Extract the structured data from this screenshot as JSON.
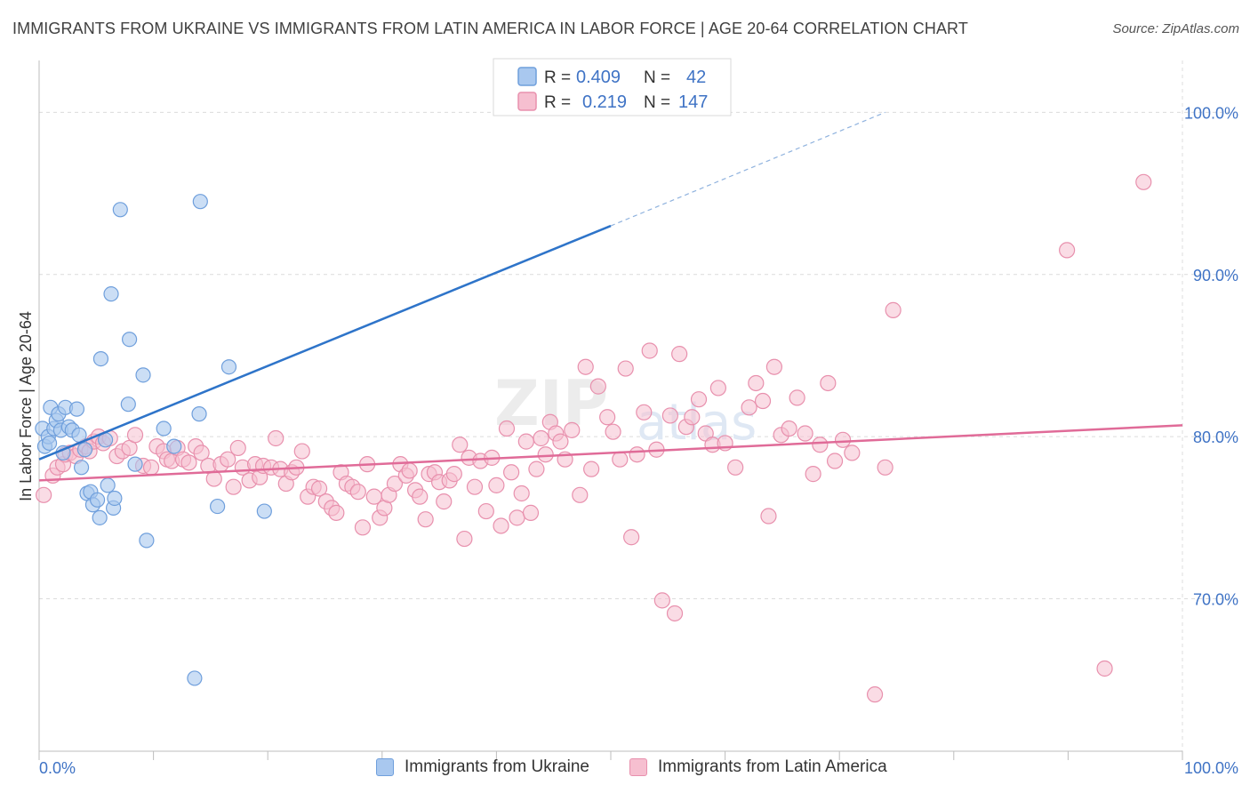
{
  "title": "IMMIGRANTS FROM UKRAINE VS IMMIGRANTS FROM LATIN AMERICA IN LABOR FORCE | AGE 20-64 CORRELATION CHART",
  "source": "Source: ZipAtlas.com",
  "colors": {
    "blue_fill": "#a9c8ef",
    "blue_stroke": "#6f9fdc",
    "blue_line": "#2e74c9",
    "pink_fill": "#f6bfd0",
    "pink_stroke": "#e890ad",
    "pink_line": "#e06b98",
    "axis_label": "#3f73c5",
    "grid": "#dcdcdc"
  },
  "chart_data": {
    "type": "scatter",
    "title": "IMMIGRANTS FROM UKRAINE VS IMMIGRANTS FROM LATIN AMERICA IN LABOR FORCE | AGE 20-64 CORRELATION CHART",
    "xlabel": "",
    "ylabel": "In Labor Force | Age 20-64",
    "xlim": [
      0,
      100
    ],
    "ylim": [
      60.6,
      103.2
    ],
    "x_tick_labels": [
      "0.0%",
      "100.0%"
    ],
    "y_ticks": [
      70,
      80,
      90,
      100
    ],
    "y_tick_labels": [
      "70.0%",
      "80.0%",
      "90.0%",
      "100.0%"
    ],
    "grid": true,
    "legend_stats": [
      {
        "r_label": "R =",
        "r_value": "0.409",
        "n_label": "N =",
        "n_value": "42"
      },
      {
        "r_label": "R =",
        "r_value": "0.219",
        "n_label": "N =",
        "n_value": "147"
      }
    ],
    "series": [
      {
        "name": "Immigrants from Ukraine",
        "color": "blue",
        "trend": {
          "x0": 0,
          "y0": 78.6,
          "x1": 50,
          "y1": 93.0,
          "dashed_to_x": 74,
          "dashed_to_y": 100.0
        },
        "points": [
          [
            0.3,
            80.5
          ],
          [
            0.5,
            79.4
          ],
          [
            0.8,
            80.0
          ],
          [
            0.9,
            79.6
          ],
          [
            1.0,
            81.8
          ],
          [
            1.3,
            80.5
          ],
          [
            1.5,
            81.0
          ],
          [
            1.7,
            81.4
          ],
          [
            1.9,
            80.4
          ],
          [
            2.1,
            79.0
          ],
          [
            2.3,
            81.8
          ],
          [
            2.6,
            80.6
          ],
          [
            2.9,
            80.4
          ],
          [
            3.3,
            81.7
          ],
          [
            3.5,
            80.1
          ],
          [
            3.7,
            78.1
          ],
          [
            4.0,
            79.2
          ],
          [
            4.2,
            76.5
          ],
          [
            4.5,
            76.6
          ],
          [
            4.7,
            75.8
          ],
          [
            5.1,
            76.1
          ],
          [
            5.3,
            75.0
          ],
          [
            5.4,
            84.8
          ],
          [
            5.8,
            79.8
          ],
          [
            6.0,
            77.0
          ],
          [
            6.3,
            88.8
          ],
          [
            6.5,
            75.6
          ],
          [
            6.6,
            76.2
          ],
          [
            7.1,
            94.0
          ],
          [
            7.8,
            82.0
          ],
          [
            7.9,
            86.0
          ],
          [
            8.4,
            78.3
          ],
          [
            9.1,
            83.8
          ],
          [
            9.4,
            73.6
          ],
          [
            10.9,
            80.5
          ],
          [
            11.8,
            79.4
          ],
          [
            13.6,
            65.1
          ],
          [
            14.0,
            81.4
          ],
          [
            14.1,
            94.5
          ],
          [
            15.6,
            75.7
          ],
          [
            16.6,
            84.3
          ],
          [
            19.7,
            75.4
          ]
        ]
      },
      {
        "name": "Immigrants from Latin America",
        "color": "pink",
        "trend": {
          "x0": 0,
          "y0": 77.3,
          "x1": 100,
          "y1": 80.7
        },
        "points": [
          [
            0.4,
            76.4
          ],
          [
            1.2,
            77.6
          ],
          [
            1.6,
            78.1
          ],
          [
            2.1,
            78.3
          ],
          [
            2.3,
            78.9
          ],
          [
            2.7,
            79.0
          ],
          [
            3.2,
            78.8
          ],
          [
            3.6,
            79.2
          ],
          [
            4.1,
            79.4
          ],
          [
            4.4,
            79.1
          ],
          [
            4.8,
            79.7
          ],
          [
            5.2,
            80.0
          ],
          [
            5.6,
            79.6
          ],
          [
            6.2,
            79.9
          ],
          [
            6.8,
            78.8
          ],
          [
            7.3,
            79.1
          ],
          [
            7.9,
            79.3
          ],
          [
            8.4,
            80.1
          ],
          [
            9.1,
            78.2
          ],
          [
            9.8,
            78.1
          ],
          [
            10.3,
            79.4
          ],
          [
            10.9,
            79.1
          ],
          [
            11.2,
            78.6
          ],
          [
            11.6,
            78.5
          ],
          [
            12.1,
            79.3
          ],
          [
            12.6,
            78.6
          ],
          [
            13.1,
            78.4
          ],
          [
            13.7,
            79.4
          ],
          [
            14.2,
            79.0
          ],
          [
            14.8,
            78.2
          ],
          [
            15.3,
            77.4
          ],
          [
            15.9,
            78.3
          ],
          [
            16.5,
            78.6
          ],
          [
            17.0,
            76.9
          ],
          [
            17.4,
            79.3
          ],
          [
            17.8,
            78.1
          ],
          [
            18.4,
            77.3
          ],
          [
            18.9,
            78.3
          ],
          [
            19.3,
            77.5
          ],
          [
            19.6,
            78.2
          ],
          [
            20.3,
            78.1
          ],
          [
            20.7,
            79.9
          ],
          [
            21.1,
            78.0
          ],
          [
            21.6,
            77.1
          ],
          [
            22.1,
            77.8
          ],
          [
            22.5,
            78.1
          ],
          [
            23.0,
            79.1
          ],
          [
            23.5,
            76.3
          ],
          [
            24.0,
            76.9
          ],
          [
            24.5,
            76.8
          ],
          [
            25.1,
            76.0
          ],
          [
            25.6,
            75.6
          ],
          [
            26.0,
            75.3
          ],
          [
            26.4,
            77.8
          ],
          [
            26.9,
            77.1
          ],
          [
            27.4,
            76.9
          ],
          [
            27.9,
            76.6
          ],
          [
            28.3,
            74.4
          ],
          [
            28.7,
            78.3
          ],
          [
            29.3,
            76.3
          ],
          [
            29.8,
            75.0
          ],
          [
            30.2,
            75.6
          ],
          [
            30.6,
            76.4
          ],
          [
            31.1,
            77.1
          ],
          [
            31.6,
            78.3
          ],
          [
            32.1,
            77.6
          ],
          [
            32.4,
            77.9
          ],
          [
            32.9,
            76.7
          ],
          [
            33.3,
            76.3
          ],
          [
            33.8,
            74.9
          ],
          [
            34.1,
            77.7
          ],
          [
            34.6,
            77.8
          ],
          [
            35.0,
            77.2
          ],
          [
            35.4,
            76.0
          ],
          [
            35.9,
            77.3
          ],
          [
            36.3,
            77.7
          ],
          [
            36.8,
            79.5
          ],
          [
            37.2,
            73.7
          ],
          [
            37.6,
            78.7
          ],
          [
            38.1,
            76.9
          ],
          [
            38.6,
            78.5
          ],
          [
            39.1,
            75.4
          ],
          [
            39.6,
            78.7
          ],
          [
            40.0,
            77.0
          ],
          [
            40.4,
            74.5
          ],
          [
            40.9,
            80.5
          ],
          [
            41.3,
            77.8
          ],
          [
            41.8,
            75.0
          ],
          [
            42.2,
            76.5
          ],
          [
            42.6,
            79.7
          ],
          [
            43.0,
            75.3
          ],
          [
            43.5,
            78.0
          ],
          [
            43.9,
            79.9
          ],
          [
            44.3,
            78.9
          ],
          [
            44.7,
            80.9
          ],
          [
            45.2,
            80.2
          ],
          [
            45.6,
            79.7
          ],
          [
            46.0,
            78.6
          ],
          [
            46.6,
            80.4
          ],
          [
            47.3,
            76.4
          ],
          [
            47.8,
            84.3
          ],
          [
            48.3,
            78.0
          ],
          [
            48.9,
            83.1
          ],
          [
            49.7,
            81.2
          ],
          [
            50.2,
            80.3
          ],
          [
            50.8,
            78.6
          ],
          [
            51.3,
            84.2
          ],
          [
            51.8,
            73.8
          ],
          [
            52.3,
            78.9
          ],
          [
            52.9,
            81.5
          ],
          [
            53.4,
            85.3
          ],
          [
            54.0,
            79.2
          ],
          [
            54.5,
            69.9
          ],
          [
            55.2,
            81.3
          ],
          [
            55.6,
            69.1
          ],
          [
            56.0,
            85.1
          ],
          [
            56.6,
            80.6
          ],
          [
            57.1,
            81.2
          ],
          [
            57.7,
            82.3
          ],
          [
            58.3,
            80.2
          ],
          [
            58.9,
            79.5
          ],
          [
            59.4,
            83.0
          ],
          [
            60.0,
            79.6
          ],
          [
            60.9,
            78.1
          ],
          [
            62.1,
            81.8
          ],
          [
            62.7,
            83.3
          ],
          [
            63.3,
            82.2
          ],
          [
            63.8,
            75.1
          ],
          [
            64.3,
            84.3
          ],
          [
            64.9,
            80.1
          ],
          [
            65.6,
            80.5
          ],
          [
            66.3,
            82.4
          ],
          [
            67.0,
            80.2
          ],
          [
            67.7,
            77.7
          ],
          [
            68.3,
            79.5
          ],
          [
            69.0,
            83.3
          ],
          [
            69.6,
            78.5
          ],
          [
            70.3,
            79.8
          ],
          [
            71.1,
            79.0
          ],
          [
            73.1,
            64.1
          ],
          [
            74.0,
            78.1
          ],
          [
            74.7,
            87.8
          ],
          [
            89.9,
            91.5
          ],
          [
            93.2,
            65.7
          ],
          [
            96.6,
            95.7
          ]
        ]
      }
    ]
  },
  "legend_bottom": [
    {
      "label": "Immigrants from Ukraine"
    },
    {
      "label": "Immigrants from Latin America"
    }
  ],
  "watermark": "ZIPatlas"
}
